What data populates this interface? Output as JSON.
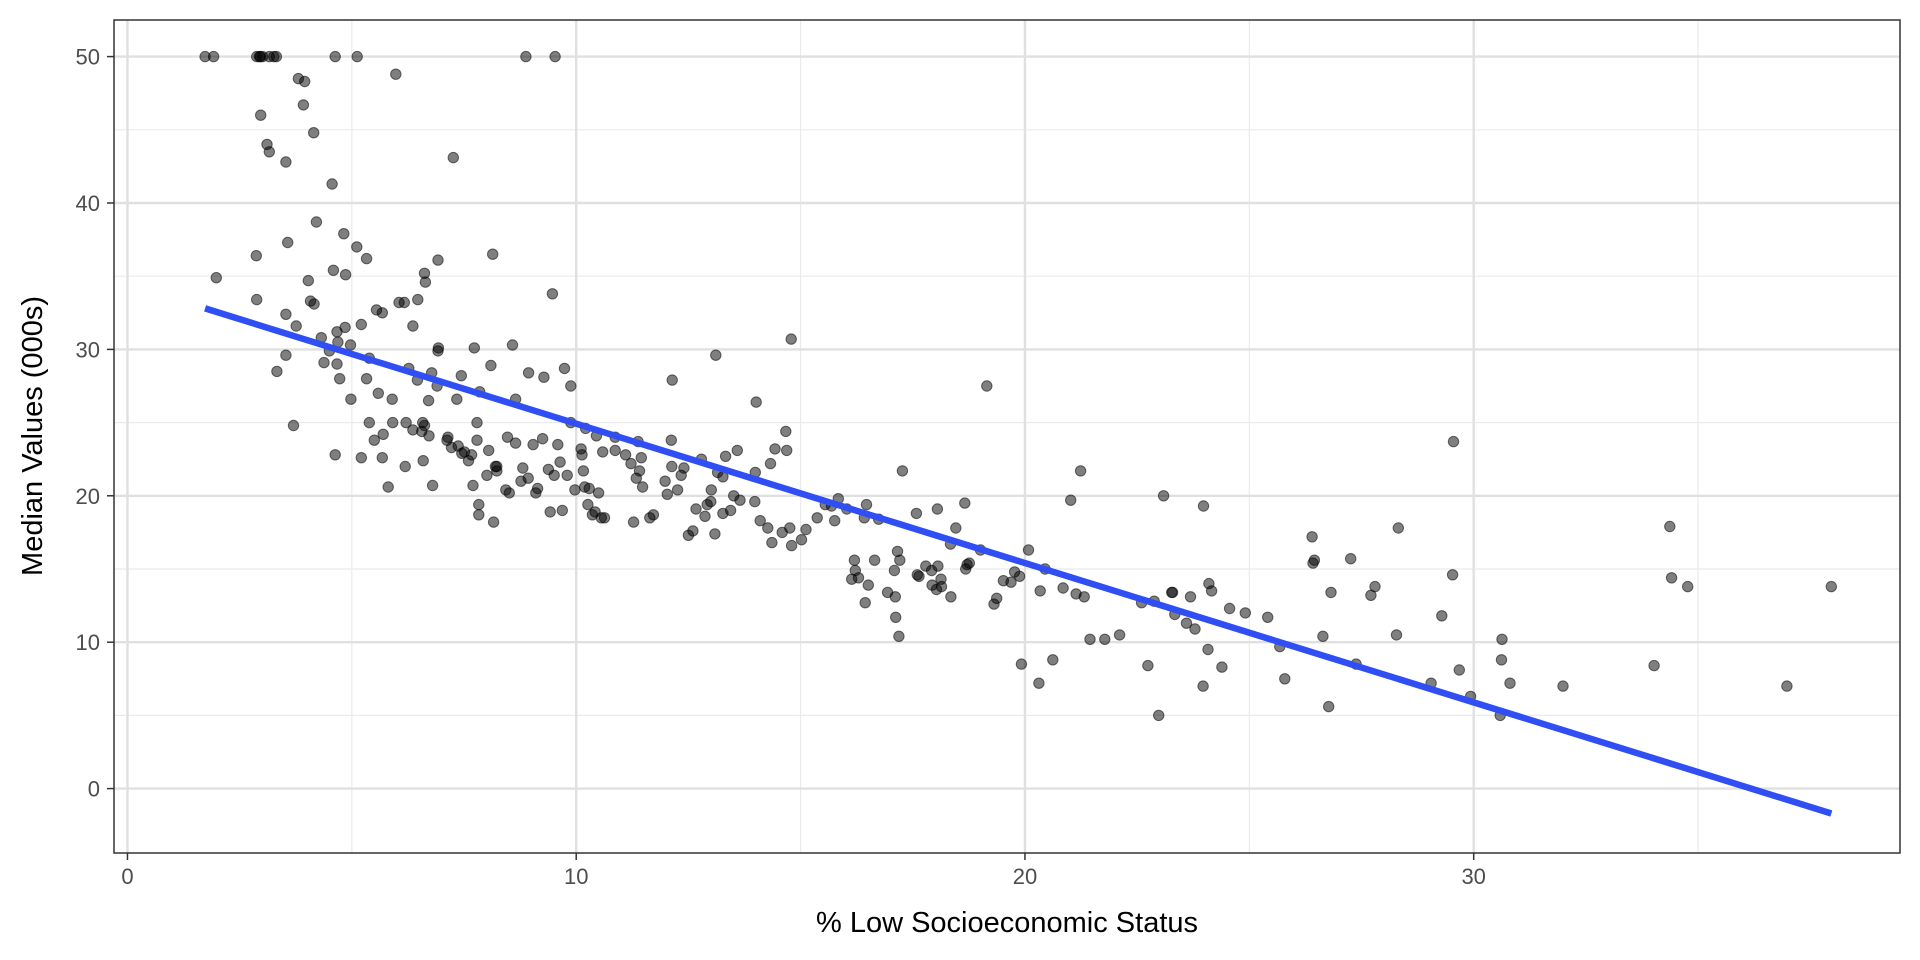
{
  "chart_data": {
    "type": "scatter",
    "title": "",
    "xlabel": "% Low Socioeconomic Status",
    "ylabel": "Median Values (000s)",
    "xlim": [
      -0.3,
      39.5
    ],
    "ylim": [
      -4.4,
      52.5
    ],
    "x_ticks": [
      0,
      10,
      20,
      30
    ],
    "x_tick_labels": [
      "0",
      "10",
      "20",
      "30"
    ],
    "x_minor_ticks": [
      5,
      15,
      25,
      35
    ],
    "y_ticks": [
      0,
      10,
      20,
      30,
      40,
      50
    ],
    "y_tick_labels": [
      "0",
      "10",
      "20",
      "30",
      "40",
      "50"
    ],
    "y_minor_ticks": [
      5,
      15,
      25,
      35,
      45
    ],
    "grid": true,
    "theme": "black-and-white",
    "point_color": "#000000",
    "point_opacity": 0.5,
    "fit_line": {
      "type": "linear",
      "color": "#2f4ff5",
      "x": [
        1.73,
        37.97
      ],
      "y": [
        32.8,
        -1.7
      ]
    },
    "points": [
      [
        1.73,
        50.0
      ],
      [
        1.92,
        50.0
      ],
      [
        2.88,
        50.0
      ],
      [
        2.94,
        50.0
      ],
      [
        2.96,
        50.0
      ],
      [
        3.01,
        50.0
      ],
      [
        3.16,
        50.0
      ],
      [
        3.26,
        50.0
      ],
      [
        3.32,
        50.0
      ],
      [
        4.63,
        50.0
      ],
      [
        5.12,
        50.0
      ],
      [
        8.88,
        50.0
      ],
      [
        9.53,
        50.0
      ],
      [
        5.98,
        48.8
      ],
      [
        3.81,
        48.5
      ],
      [
        3.95,
        48.3
      ],
      [
        2.97,
        46.0
      ],
      [
        3.92,
        46.7
      ],
      [
        4.15,
        44.8
      ],
      [
        3.11,
        44.0
      ],
      [
        3.16,
        43.5
      ],
      [
        3.53,
        42.8
      ],
      [
        7.26,
        43.1
      ],
      [
        4.56,
        41.3
      ],
      [
        4.21,
        38.7
      ],
      [
        4.82,
        37.9
      ],
      [
        3.57,
        37.3
      ],
      [
        5.11,
        37.0
      ],
      [
        8.14,
        36.5
      ],
      [
        2.87,
        36.4
      ],
      [
        5.33,
        36.2
      ],
      [
        6.92,
        36.1
      ],
      [
        4.59,
        35.4
      ],
      [
        1.98,
        34.9
      ],
      [
        4.86,
        35.1
      ],
      [
        6.62,
        35.2
      ],
      [
        6.64,
        34.6
      ],
      [
        4.03,
        34.7
      ],
      [
        9.47,
        33.8
      ],
      [
        2.88,
        33.4
      ],
      [
        4.08,
        33.3
      ],
      [
        4.16,
        33.1
      ],
      [
        6.05,
        33.2
      ],
      [
        6.17,
        33.2
      ],
      [
        6.47,
        33.4
      ],
      [
        5.55,
        32.7
      ],
      [
        5.68,
        32.5
      ],
      [
        3.53,
        32.4
      ],
      [
        3.76,
        31.6
      ],
      [
        4.32,
        30.8
      ],
      [
        4.85,
        31.5
      ],
      [
        4.67,
        31.2
      ],
      [
        5.21,
        31.7
      ],
      [
        6.36,
        31.6
      ],
      [
        4.5,
        29.9
      ],
      [
        4.97,
        30.3
      ],
      [
        4.69,
        30.5
      ],
      [
        6.93,
        30.1
      ],
      [
        6.92,
        29.9
      ],
      [
        7.73,
        30.1
      ],
      [
        8.58,
        30.3
      ],
      [
        3.53,
        29.6
      ],
      [
        4.67,
        29.0
      ],
      [
        5.39,
        29.4
      ],
      [
        6.27,
        28.7
      ],
      [
        3.33,
        28.5
      ],
      [
        4.38,
        29.1
      ],
      [
        5.33,
        28.0
      ],
      [
        6.78,
        28.4
      ],
      [
        7.44,
        28.2
      ],
      [
        8.94,
        28.4
      ],
      [
        9.28,
        28.1
      ],
      [
        9.74,
        28.7
      ],
      [
        12.14,
        27.9
      ],
      [
        6.46,
        27.9
      ],
      [
        6.9,
        27.5
      ],
      [
        8.1,
        28.9
      ],
      [
        4.73,
        28.0
      ],
      [
        7.34,
        26.6
      ],
      [
        7.85,
        27.1
      ],
      [
        4.98,
        26.6
      ],
      [
        5.59,
        27.0
      ],
      [
        6.71,
        26.5
      ],
      [
        5.9,
        26.6
      ],
      [
        6.58,
        25.0
      ],
      [
        8.65,
        26.6
      ],
      [
        9.88,
        27.5
      ],
      [
        14.01,
        26.4
      ],
      [
        3.7,
        24.8
      ],
      [
        4.63,
        22.8
      ],
      [
        5.21,
        22.6
      ],
      [
        5.5,
        23.8
      ],
      [
        5.39,
        25.0
      ],
      [
        5.7,
        24.2
      ],
      [
        5.91,
        25.0
      ],
      [
        6.21,
        25.0
      ],
      [
        6.36,
        24.5
      ],
      [
        6.56,
        24.4
      ],
      [
        6.62,
        24.8
      ],
      [
        6.72,
        24.1
      ],
      [
        7.12,
        23.8
      ],
      [
        7.22,
        23.3
      ],
      [
        7.37,
        23.4
      ],
      [
        7.51,
        23.0
      ],
      [
        7.67,
        22.8
      ],
      [
        7.79,
        25.0
      ],
      [
        7.79,
        23.8
      ],
      [
        8.05,
        23.1
      ],
      [
        8.23,
        22.0
      ],
      [
        8.47,
        24.0
      ],
      [
        8.65,
        23.6
      ],
      [
        8.81,
        21.9
      ],
      [
        9.04,
        23.5
      ],
      [
        9.25,
        23.9
      ],
      [
        9.59,
        23.5
      ],
      [
        9.88,
        25.0
      ],
      [
        10.11,
        23.2
      ],
      [
        10.21,
        24.6
      ],
      [
        10.45,
        24.1
      ],
      [
        10.59,
        23.0
      ],
      [
        10.87,
        24.0
      ],
      [
        11.22,
        22.2
      ],
      [
        11.38,
        23.7
      ],
      [
        11.45,
        22.6
      ],
      [
        12.12,
        23.8
      ],
      [
        12.13,
        22.0
      ],
      [
        12.4,
        21.9
      ],
      [
        12.79,
        22.5
      ],
      [
        13.01,
        20.4
      ],
      [
        13.15,
        21.6
      ],
      [
        13.33,
        22.7
      ],
      [
        13.59,
        23.1
      ],
      [
        13.27,
        21.3
      ],
      [
        13.99,
        21.6
      ],
      [
        14.33,
        22.2
      ],
      [
        14.43,
        23.2
      ],
      [
        14.67,
        24.4
      ],
      [
        14.69,
        23.1
      ],
      [
        14.79,
        30.7
      ],
      [
        13.11,
        29.6
      ],
      [
        5.68,
        22.6
      ],
      [
        5.81,
        20.6
      ],
      [
        6.19,
        22.0
      ],
      [
        6.59,
        22.4
      ],
      [
        6.8,
        20.7
      ],
      [
        7.14,
        24.0
      ],
      [
        7.45,
        22.9
      ],
      [
        7.6,
        22.4
      ],
      [
        7.7,
        20.7
      ],
      [
        7.83,
        19.4
      ],
      [
        7.83,
        18.7
      ],
      [
        8.01,
        21.4
      ],
      [
        8.16,
        18.2
      ],
      [
        8.2,
        22.0
      ],
      [
        8.23,
        21.7
      ],
      [
        8.43,
        20.4
      ],
      [
        8.51,
        20.2
      ],
      [
        8.77,
        21.0
      ],
      [
        8.93,
        21.2
      ],
      [
        9.1,
        20.2
      ],
      [
        9.14,
        20.5
      ],
      [
        9.38,
        21.8
      ],
      [
        9.42,
        18.9
      ],
      [
        9.51,
        21.4
      ],
      [
        9.64,
        22.3
      ],
      [
        9.69,
        19.0
      ],
      [
        9.8,
        21.4
      ],
      [
        9.97,
        20.4
      ],
      [
        10.13,
        22.8
      ],
      [
        10.16,
        21.7
      ],
      [
        10.19,
        20.6
      ],
      [
        10.26,
        19.4
      ],
      [
        10.29,
        20.5
      ],
      [
        10.36,
        18.7
      ],
      [
        10.42,
        18.9
      ],
      [
        10.5,
        20.2
      ],
      [
        10.56,
        18.5
      ],
      [
        10.63,
        18.5
      ],
      [
        10.87,
        23.1
      ],
      [
        11.1,
        22.8
      ],
      [
        11.28,
        18.2
      ],
      [
        11.34,
        21.2
      ],
      [
        11.41,
        21.7
      ],
      [
        11.48,
        20.6
      ],
      [
        11.64,
        18.5
      ],
      [
        11.72,
        18.7
      ],
      [
        11.98,
        21.0
      ],
      [
        12.03,
        20.1
      ],
      [
        12.26,
        20.4
      ],
      [
        12.34,
        21.4
      ],
      [
        12.5,
        17.3
      ],
      [
        12.6,
        17.6
      ],
      [
        12.67,
        19.1
      ],
      [
        12.87,
        18.6
      ],
      [
        12.92,
        19.4
      ],
      [
        13.0,
        19.6
      ],
      [
        13.09,
        17.4
      ],
      [
        13.27,
        18.8
      ],
      [
        13.44,
        19.0
      ],
      [
        13.51,
        20.0
      ],
      [
        13.65,
        19.7
      ],
      [
        13.98,
        19.6
      ],
      [
        14.1,
        18.3
      ],
      [
        14.27,
        17.8
      ],
      [
        14.36,
        16.8
      ],
      [
        14.59,
        17.5
      ],
      [
        14.76,
        17.8
      ],
      [
        14.8,
        16.6
      ],
      [
        15.02,
        17.0
      ],
      [
        15.12,
        17.7
      ],
      [
        15.37,
        18.5
      ],
      [
        15.55,
        19.4
      ],
      [
        15.69,
        19.3
      ],
      [
        15.76,
        18.3
      ],
      [
        15.84,
        19.8
      ],
      [
        16.03,
        19.1
      ],
      [
        16.14,
        14.3
      ],
      [
        16.2,
        15.6
      ],
      [
        16.22,
        14.9
      ],
      [
        16.29,
        14.4
      ],
      [
        16.42,
        18.5
      ],
      [
        16.44,
        12.7
      ],
      [
        16.47,
        19.4
      ],
      [
        16.51,
        13.9
      ],
      [
        16.65,
        15.6
      ],
      [
        16.74,
        18.4
      ],
      [
        16.94,
        13.4
      ],
      [
        17.09,
        14.9
      ],
      [
        17.11,
        13.1
      ],
      [
        17.12,
        11.7
      ],
      [
        17.16,
        16.2
      ],
      [
        17.19,
        10.4
      ],
      [
        17.21,
        15.6
      ],
      [
        17.27,
        21.7
      ],
      [
        17.58,
        18.8
      ],
      [
        17.6,
        14.6
      ],
      [
        17.64,
        14.5
      ],
      [
        17.79,
        15.2
      ],
      [
        17.92,
        14.9
      ],
      [
        17.93,
        13.9
      ],
      [
        18.03,
        13.6
      ],
      [
        18.05,
        19.1
      ],
      [
        18.06,
        15.2
      ],
      [
        18.13,
        14.3
      ],
      [
        18.14,
        13.8
      ],
      [
        18.34,
        16.7
      ],
      [
        18.35,
        13.1
      ],
      [
        18.46,
        17.8
      ],
      [
        18.66,
        19.5
      ],
      [
        18.68,
        15.0
      ],
      [
        18.71,
        15.3
      ],
      [
        18.76,
        15.4
      ],
      [
        19.01,
        16.3
      ],
      [
        19.15,
        27.5
      ],
      [
        19.31,
        12.6
      ],
      [
        19.37,
        13.0
      ],
      [
        19.52,
        14.2
      ],
      [
        19.69,
        14.1
      ],
      [
        19.77,
        14.8
      ],
      [
        19.88,
        14.5
      ],
      [
        19.92,
        8.5
      ],
      [
        20.08,
        16.3
      ],
      [
        20.31,
        7.2
      ],
      [
        20.34,
        13.5
      ],
      [
        20.45,
        15.0
      ],
      [
        20.62,
        8.8
      ],
      [
        20.85,
        13.7
      ],
      [
        21.02,
        19.7
      ],
      [
        21.14,
        13.3
      ],
      [
        21.24,
        21.7
      ],
      [
        21.32,
        13.1
      ],
      [
        21.45,
        10.2
      ],
      [
        21.78,
        10.2
      ],
      [
        22.11,
        10.5
      ],
      [
        22.6,
        12.7
      ],
      [
        22.74,
        8.4
      ],
      [
        22.88,
        12.8
      ],
      [
        22.98,
        5.0
      ],
      [
        23.09,
        20.0
      ],
      [
        23.27,
        13.4
      ],
      [
        23.29,
        13.4
      ],
      [
        23.34,
        11.9
      ],
      [
        23.6,
        11.3
      ],
      [
        23.69,
        13.1
      ],
      [
        23.79,
        10.9
      ],
      [
        23.97,
        7.0
      ],
      [
        23.98,
        19.3
      ],
      [
        24.08,
        9.5
      ],
      [
        24.1,
        14.0
      ],
      [
        24.16,
        13.5
      ],
      [
        24.39,
        8.3
      ],
      [
        24.56,
        12.3
      ],
      [
        24.91,
        12.0
      ],
      [
        25.41,
        11.7
      ],
      [
        25.68,
        9.7
      ],
      [
        25.79,
        7.5
      ],
      [
        26.4,
        17.2
      ],
      [
        26.42,
        15.4
      ],
      [
        26.45,
        15.6
      ],
      [
        26.64,
        10.4
      ],
      [
        26.77,
        5.6
      ],
      [
        26.82,
        13.4
      ],
      [
        27.26,
        15.7
      ],
      [
        27.38,
        8.5
      ],
      [
        27.71,
        13.2
      ],
      [
        27.8,
        13.8
      ],
      [
        28.28,
        10.5
      ],
      [
        28.32,
        17.8
      ],
      [
        29.05,
        7.2
      ],
      [
        29.29,
        11.8
      ],
      [
        29.53,
        14.6
      ],
      [
        29.55,
        23.7
      ],
      [
        29.68,
        8.1
      ],
      [
        29.93,
        6.3
      ],
      [
        30.59,
        5.0
      ],
      [
        30.62,
        8.8
      ],
      [
        30.63,
        10.2
      ],
      [
        30.81,
        7.2
      ],
      [
        31.99,
        7.0
      ],
      [
        34.02,
        8.4
      ],
      [
        34.37,
        17.9
      ],
      [
        34.41,
        14.4
      ],
      [
        34.77,
        13.8
      ],
      [
        36.98,
        7.0
      ],
      [
        37.97,
        13.8
      ]
    ]
  }
}
